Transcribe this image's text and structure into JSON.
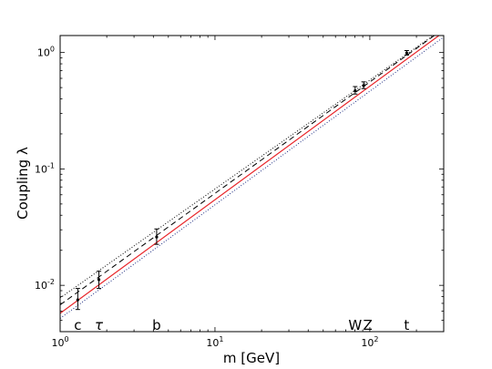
{
  "chart_data": {
    "type": "line",
    "xlabel": "m [GeV]",
    "ylabel": "Coupling λ",
    "xscale": "log",
    "yscale": "log",
    "xlim": [
      1,
      300
    ],
    "ylim": [
      0.004,
      1.4
    ],
    "xticks": [
      {
        "value": 1,
        "base": "10",
        "exp": "0"
      },
      {
        "value": 10,
        "base": "10",
        "exp": "1"
      },
      {
        "value": 100,
        "base": "10",
        "exp": "2"
      }
    ],
    "yticks": [
      {
        "value": 0.01,
        "base": "10",
        "exp": "-2"
      },
      {
        "value": 0.1,
        "base": "10",
        "exp": "-1"
      },
      {
        "value": 1,
        "base": "10",
        "exp": "0"
      }
    ],
    "grid": false,
    "series": [
      {
        "style": "solid",
        "color": "#e8262b",
        "x": [
          1,
          300
        ],
        "y": [
          0.00575,
          1.5
        ]
      },
      {
        "style": "dashed",
        "color": "#000000",
        "x": [
          1,
          300
        ],
        "y": [
          0.0068,
          1.6
        ]
      },
      {
        "style": "dotted",
        "color": "#1a2a80",
        "x": [
          1,
          300
        ],
        "y": [
          0.0052,
          1.36
        ]
      },
      {
        "style": "dotted",
        "color": "#000000",
        "x": [
          1,
          300
        ],
        "y": [
          0.0078,
          1.62
        ]
      }
    ],
    "points": [
      {
        "label": "c",
        "x": 1.3,
        "y": 0.0075,
        "ylo": 0.0062,
        "yhi": 0.0094
      },
      {
        "label": "τ",
        "x": 1.78,
        "y": 0.0112,
        "ylo": 0.0094,
        "yhi": 0.0132
      },
      {
        "label": "b",
        "x": 4.2,
        "y": 0.026,
        "ylo": 0.0225,
        "yhi": 0.0305
      },
      {
        "label": "W",
        "x": 80.4,
        "y": 0.47,
        "ylo": 0.44,
        "yhi": 0.51
      },
      {
        "label": "Z",
        "x": 91.2,
        "y": 0.52,
        "ylo": 0.49,
        "yhi": 0.56
      },
      {
        "label": "t",
        "x": 173,
        "y": 0.99,
        "ylo": 0.95,
        "yhi": 1.04
      }
    ],
    "particle_labels": [
      {
        "text": "c",
        "x": 1.3,
        "italic": false
      },
      {
        "text": "τ",
        "x": 1.78,
        "italic": true
      },
      {
        "text": "b",
        "x": 4.2,
        "italic": false
      },
      {
        "text": "W",
        "x": 80.4,
        "italic": false
      },
      {
        "text": "Z",
        "x": 97,
        "italic": false
      },
      {
        "text": "t",
        "x": 173,
        "italic": false
      }
    ]
  }
}
